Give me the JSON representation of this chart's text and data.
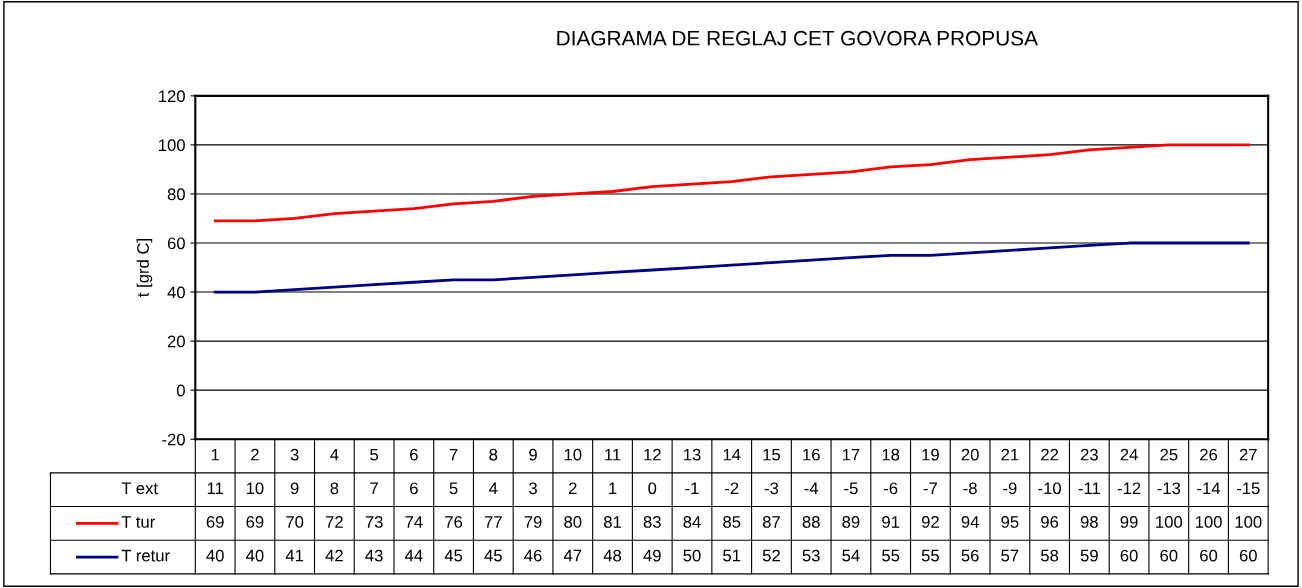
{
  "chart_data": {
    "type": "line",
    "title": "DIAGRAMA DE REGLAJ CET GOVORA PROPUSA",
    "ylabel": "t [grd C]",
    "categories": [
      "1",
      "2",
      "3",
      "4",
      "5",
      "6",
      "7",
      "8",
      "9",
      "10",
      "11",
      "12",
      "13",
      "14",
      "15",
      "16",
      "17",
      "18",
      "19",
      "20",
      "21",
      "22",
      "23",
      "24",
      "25",
      "26",
      "27"
    ],
    "series": [
      {
        "name": "T ext",
        "values": [
          null,
          null,
          null,
          null,
          null,
          null,
          null,
          null,
          null,
          null,
          null,
          null,
          null,
          null,
          null,
          null,
          null,
          null,
          null,
          null,
          null,
          null,
          null,
          null,
          null,
          null,
          null
        ],
        "value_labels": [
          "11",
          "10",
          "9",
          "8",
          "7",
          "6",
          "5",
          "4",
          "3",
          "2",
          "1",
          "0",
          "-1",
          "-2",
          "-3",
          "-4",
          "-5",
          "-6",
          "-7",
          "-8",
          "-9",
          "-10",
          "-11",
          "-12",
          "-13",
          "-14",
          "-15"
        ]
      },
      {
        "name": "T tur",
        "color": "#ff0000",
        "values": [
          69,
          69,
          70,
          72,
          73,
          74,
          76,
          77,
          79,
          80,
          81,
          83,
          84,
          85,
          87,
          88,
          89,
          91,
          92,
          94,
          95,
          96,
          98,
          99,
          100,
          100,
          100
        ]
      },
      {
        "name": "T retur",
        "color": "#000080",
        "values": [
          40,
          40,
          41,
          42,
          43,
          44,
          45,
          45,
          46,
          47,
          48,
          49,
          50,
          51,
          52,
          53,
          54,
          55,
          55,
          56,
          57,
          58,
          59,
          60,
          60,
          60,
          60
        ]
      }
    ],
    "ylim": [
      -20,
      120
    ],
    "yticks": [
      -20,
      0,
      20,
      40,
      60,
      80,
      100,
      120
    ],
    "grid": "y",
    "data_labels": true,
    "marker": "none",
    "line_style": "solid",
    "legend": "bottom"
  }
}
